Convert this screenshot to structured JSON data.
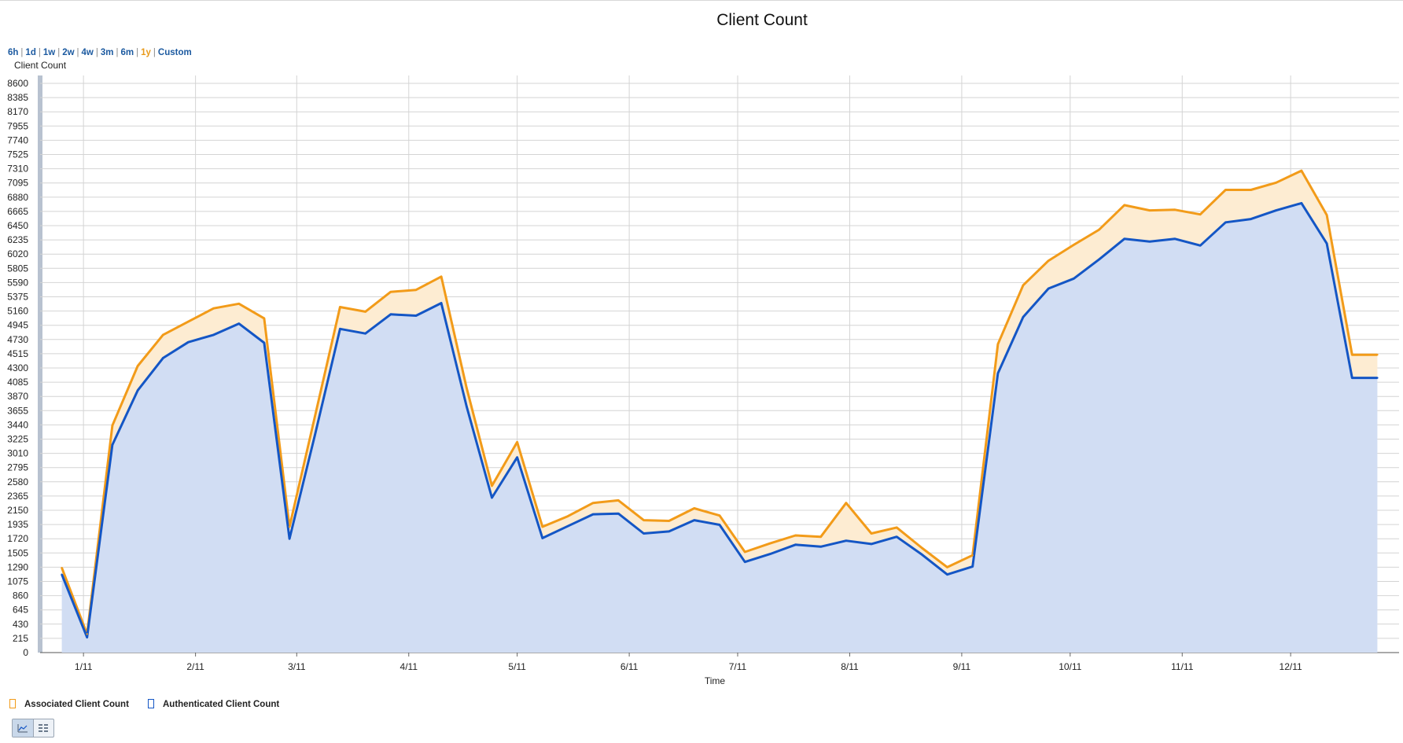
{
  "page": {
    "title": "Client Count"
  },
  "time_ranges": [
    {
      "label": "6h",
      "active": false
    },
    {
      "label": "1d",
      "active": false
    },
    {
      "label": "1w",
      "active": false
    },
    {
      "label": "2w",
      "active": false
    },
    {
      "label": "4w",
      "active": false
    },
    {
      "label": "3m",
      "active": false
    },
    {
      "label": "6m",
      "active": false
    },
    {
      "label": "1y",
      "active": true
    },
    {
      "label": "Custom",
      "active": false
    }
  ],
  "legend": [
    {
      "name": "Associated Client Count",
      "color": "#f29b19"
    },
    {
      "name": "Authenticated Client Count",
      "color": "#1456c5"
    }
  ],
  "view_buttons": [
    {
      "icon": "line-chart-icon",
      "active": true
    },
    {
      "icon": "table-view-icon",
      "active": false
    }
  ],
  "colors": {
    "associated_line": "#f29b19",
    "associated_fill": "#fdecd2",
    "authenticated_line": "#1456c5",
    "authenticated_fill": "#d1ddf3",
    "grid": "#d4d4d4"
  },
  "chart_data": {
    "type": "area",
    "title": "Client Count",
    "xlabel": "Time",
    "ylabel": "Client Count",
    "ylim": [
      0,
      8600
    ],
    "yticks": [
      0,
      215,
      430,
      645,
      860,
      1075,
      1290,
      1505,
      1720,
      1935,
      2150,
      2365,
      2580,
      2795,
      3010,
      3225,
      3440,
      3655,
      3870,
      4085,
      4300,
      4515,
      4730,
      4945,
      5160,
      5375,
      5590,
      5805,
      6020,
      6235,
      6450,
      6665,
      6880,
      7095,
      7310,
      7525,
      7740,
      7955,
      8170,
      8385,
      8600
    ],
    "xticks": [
      {
        "label": "1/11",
        "date": "2011-01-01"
      },
      {
        "label": "2/11",
        "date": "2011-02-01"
      },
      {
        "label": "3/11",
        "date": "2011-03-01"
      },
      {
        "label": "4/11",
        "date": "2011-04-01"
      },
      {
        "label": "5/11",
        "date": "2011-05-01"
      },
      {
        "label": "6/11",
        "date": "2011-06-01"
      },
      {
        "label": "7/11",
        "date": "2011-07-01"
      },
      {
        "label": "8/11",
        "date": "2011-08-01"
      },
      {
        "label": "9/11",
        "date": "2011-09-01"
      },
      {
        "label": "10/11",
        "date": "2011-10-01"
      },
      {
        "label": "11/11",
        "date": "2011-11-01"
      },
      {
        "label": "12/11",
        "date": "2011-12-01"
      }
    ],
    "xlim": [
      "2010-12-20",
      "2011-12-31"
    ],
    "grid": true,
    "legend_position": "bottom-left",
    "x": [
      "2010-12-26",
      "2011-01-02",
      "2011-01-09",
      "2011-01-16",
      "2011-01-23",
      "2011-01-30",
      "2011-02-06",
      "2011-02-13",
      "2011-02-20",
      "2011-02-27",
      "2011-03-06",
      "2011-03-13",
      "2011-03-20",
      "2011-03-27",
      "2011-04-03",
      "2011-04-10",
      "2011-04-17",
      "2011-04-24",
      "2011-05-01",
      "2011-05-08",
      "2011-05-15",
      "2011-05-22",
      "2011-05-29",
      "2011-06-05",
      "2011-06-12",
      "2011-06-19",
      "2011-06-26",
      "2011-07-03",
      "2011-07-10",
      "2011-07-17",
      "2011-07-24",
      "2011-07-31",
      "2011-08-07",
      "2011-08-14",
      "2011-08-21",
      "2011-08-28",
      "2011-09-04",
      "2011-09-11",
      "2011-09-18",
      "2011-09-25",
      "2011-10-02",
      "2011-10-09",
      "2011-10-16",
      "2011-10-23",
      "2011-10-30",
      "2011-11-06",
      "2011-11-13",
      "2011-11-20",
      "2011-11-27",
      "2011-12-04",
      "2011-12-11",
      "2011-12-18",
      "2011-12-25"
    ],
    "series": [
      {
        "name": "Associated Client Count",
        "values": [
          1280,
          280,
          3430,
          4330,
          4800,
          5000,
          5200,
          5270,
          5050,
          1900,
          3560,
          5220,
          5150,
          5450,
          5480,
          5680,
          4000,
          2520,
          3180,
          1900,
          2060,
          2260,
          2300,
          2000,
          1990,
          2180,
          2070,
          1520,
          1650,
          1770,
          1750,
          2260,
          1800,
          1890,
          1580,
          1290,
          1470,
          4660,
          5550,
          5920,
          6160,
          6390,
          6760,
          6680,
          6690,
          6620,
          6990,
          6990,
          7100,
          7280,
          6610,
          4500,
          4500
        ]
      },
      {
        "name": "Authenticated Client Count",
        "values": [
          1180,
          230,
          3140,
          3960,
          4450,
          4690,
          4800,
          4970,
          4680,
          1720,
          3280,
          4890,
          4820,
          5110,
          5090,
          5280,
          3720,
          2340,
          2950,
          1730,
          1910,
          2090,
          2100,
          1800,
          1830,
          2000,
          1930,
          1370,
          1490,
          1630,
          1600,
          1690,
          1640,
          1750,
          1480,
          1180,
          1300,
          4220,
          5070,
          5500,
          5650,
          5940,
          6250,
          6210,
          6250,
          6150,
          6500,
          6550,
          6680,
          6790,
          6180,
          4150,
          4150
        ]
      }
    ]
  }
}
